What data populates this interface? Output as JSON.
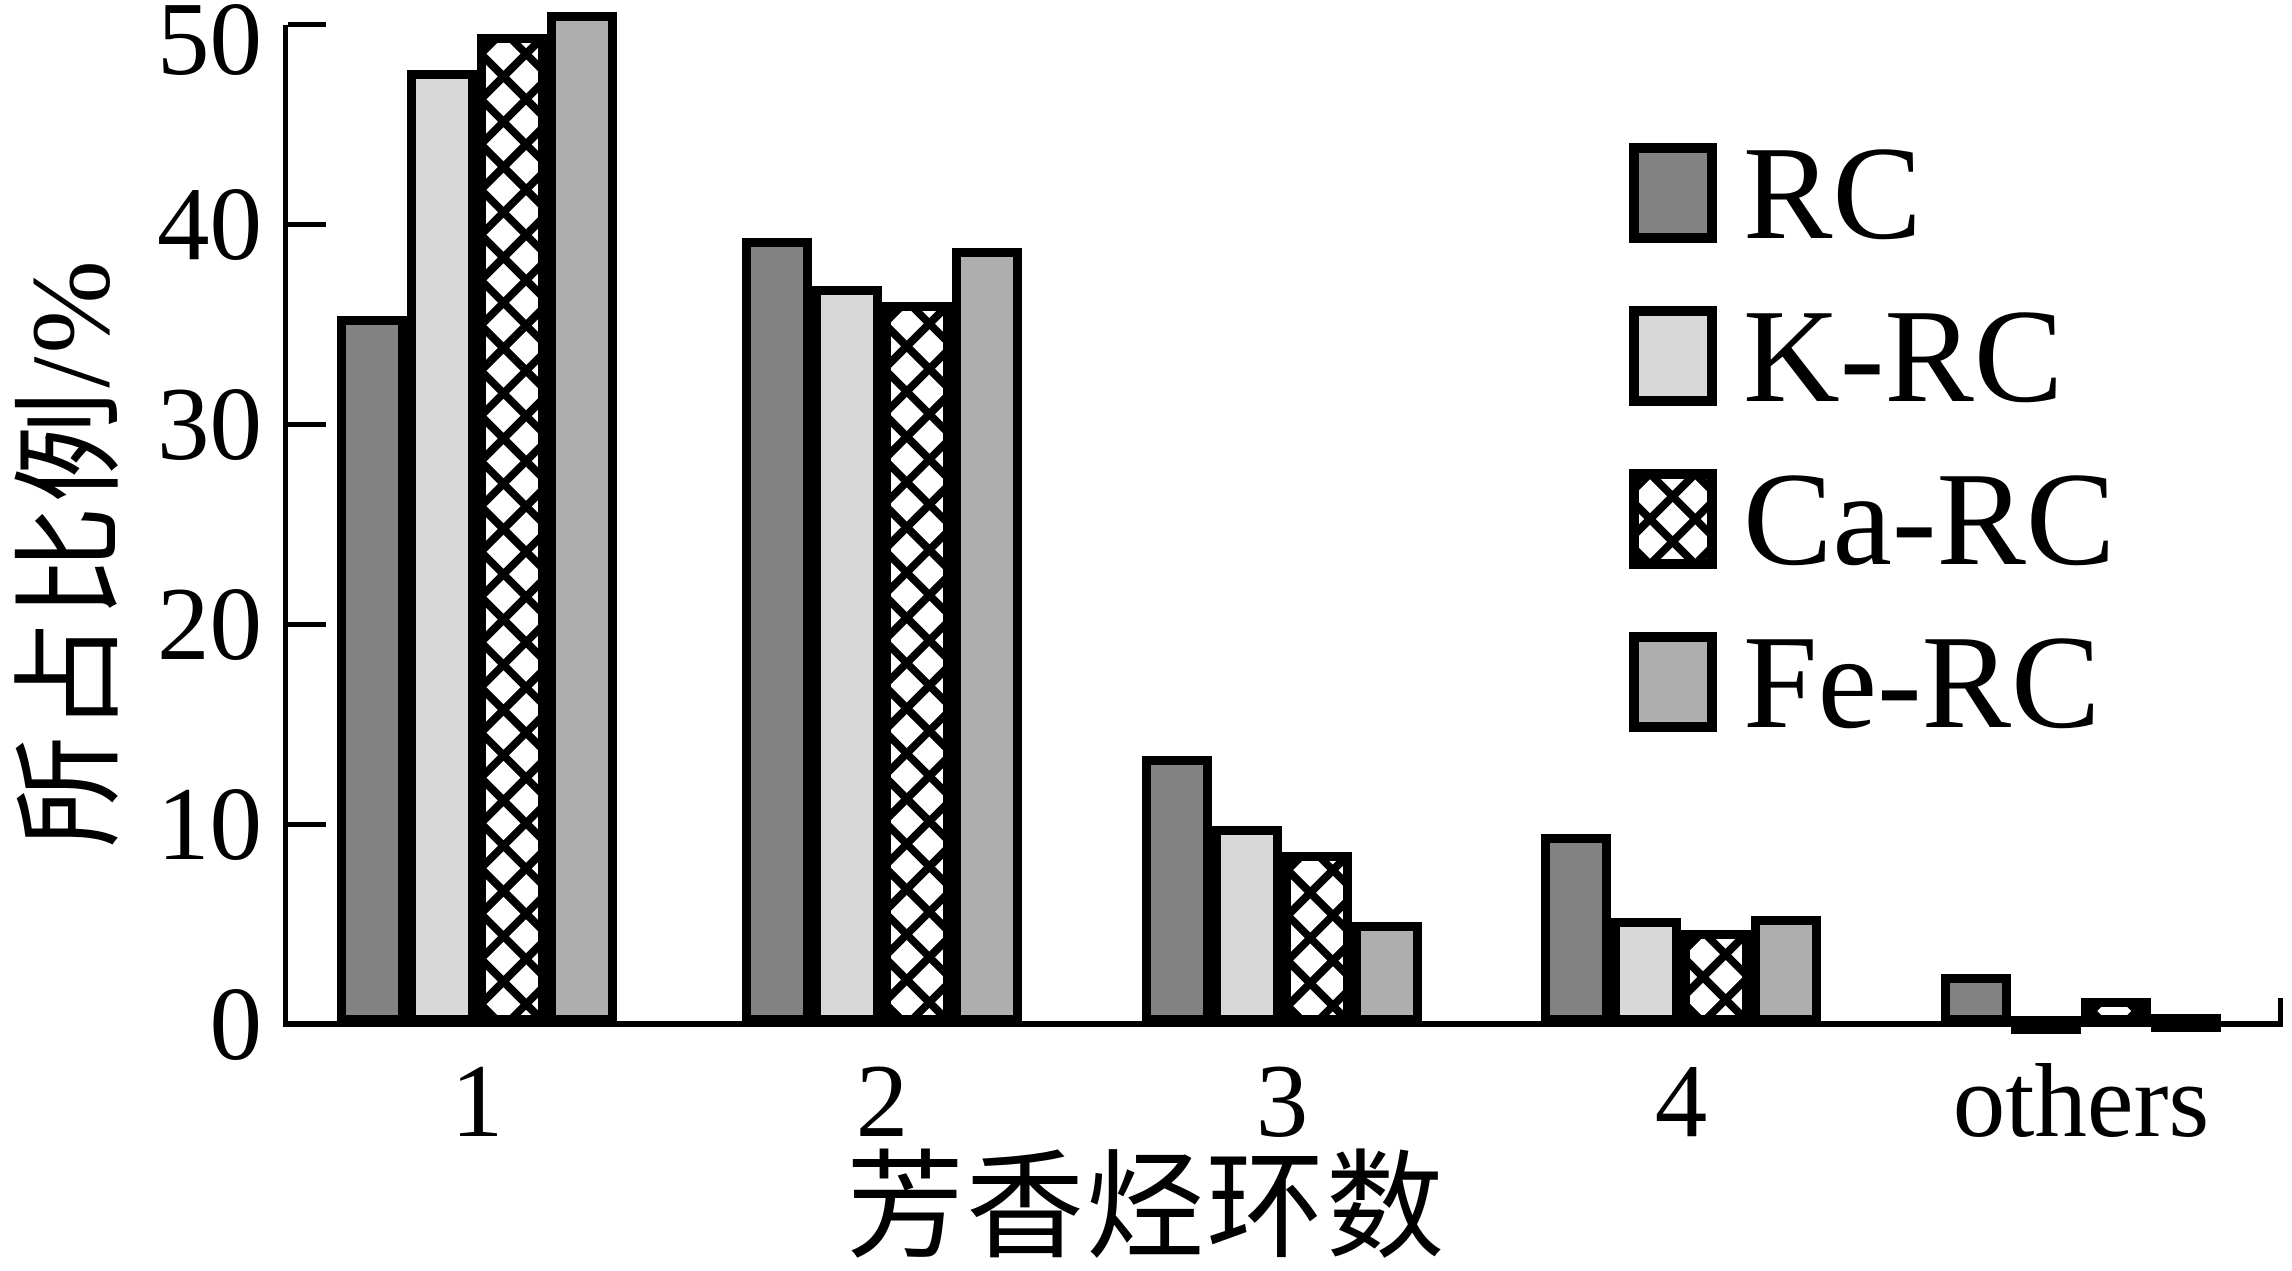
{
  "chart_data": {
    "type": "bar",
    "title": "",
    "xlabel": "芳香烃环数",
    "ylabel": "所占比例/%",
    "categories": [
      "1",
      "2",
      "3",
      "4",
      "others"
    ],
    "series": [
      {
        "name": "RC",
        "pattern": "solid",
        "color": "#828282",
        "values": [
          35.4,
          39.3,
          13.4,
          9.5,
          2.5
        ]
      },
      {
        "name": "K-RC",
        "pattern": "solid",
        "color": "#d8d8d8",
        "values": [
          47.7,
          36.9,
          9.9,
          5.3,
          0.4
        ]
      },
      {
        "name": "Ca-RC",
        "pattern": "crosshatch",
        "color": "#ffffff",
        "values": [
          49.5,
          36.1,
          8.6,
          4.7,
          1.3
        ]
      },
      {
        "name": "Fe-RC",
        "pattern": "solid",
        "color": "#aeaeae",
        "values": [
          50.6,
          38.8,
          5.1,
          5.4,
          0.5
        ]
      }
    ],
    "ylim": [
      0,
      50
    ],
    "yticks": [
      0,
      10,
      20,
      30,
      40,
      50
    ],
    "grid": "off",
    "legend_position": "upper right",
    "bar_outline_color": "#000000"
  }
}
